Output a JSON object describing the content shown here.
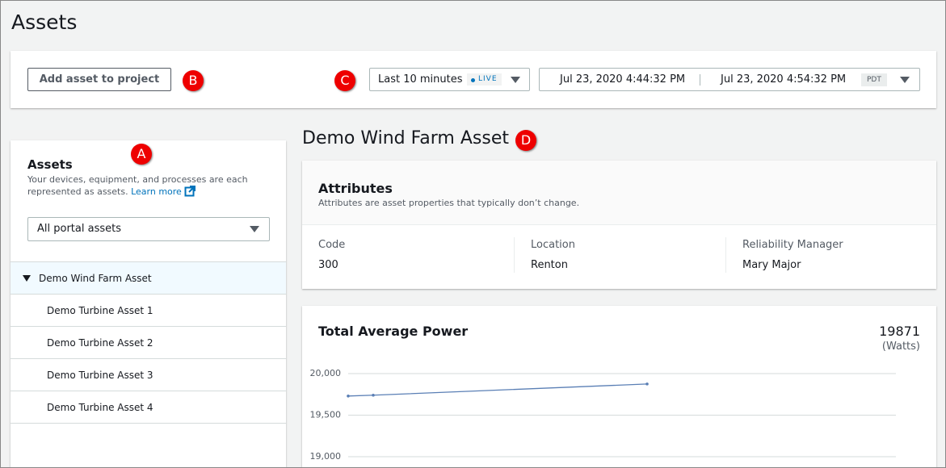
{
  "header": {
    "title": "Assets"
  },
  "toolbar": {
    "add_button": "Add asset to project",
    "time_range": "Last 10 minutes",
    "live_badge": "LIVE",
    "start": "Jul 23, 2020 4:44:32 PM",
    "end": "Jul 23, 2020 4:54:32 PM",
    "timezone": "PDT"
  },
  "callouts": [
    "A",
    "B",
    "C",
    "D"
  ],
  "sidebar": {
    "title": "Assets",
    "description": "Your devices, equipment, and processes are each represented as assets.",
    "learn_more": "Learn more",
    "filter": "All portal assets",
    "tree": {
      "root": "Demo Wind Farm Asset",
      "children": [
        "Demo Turbine Asset 1",
        "Demo Turbine Asset 2",
        "Demo Turbine Asset 3",
        "Demo Turbine Asset 4"
      ]
    }
  },
  "asset": {
    "name": "Demo Wind Farm Asset",
    "attributes": {
      "title": "Attributes",
      "description": "Attributes are asset properties that typically don’t change.",
      "fields": [
        {
          "label": "Code",
          "value": "300"
        },
        {
          "label": "Location",
          "value": "Renton"
        },
        {
          "label": "Reliability Manager",
          "value": "Mary Major"
        }
      ]
    }
  },
  "chart_data": {
    "type": "line",
    "title": "Total Average Power",
    "latest_value": 19871,
    "unit": "(Watts)",
    "color": "#5a7fb5",
    "values": [
      19730,
      19740,
      19875
    ],
    "ylim": [
      19000,
      20000
    ],
    "yticks": [
      {
        "value": 20000,
        "label": "20,000"
      },
      {
        "value": 19500,
        "label": "19,500"
      },
      {
        "value": 19000,
        "label": "19,000"
      }
    ],
    "grid": true
  }
}
